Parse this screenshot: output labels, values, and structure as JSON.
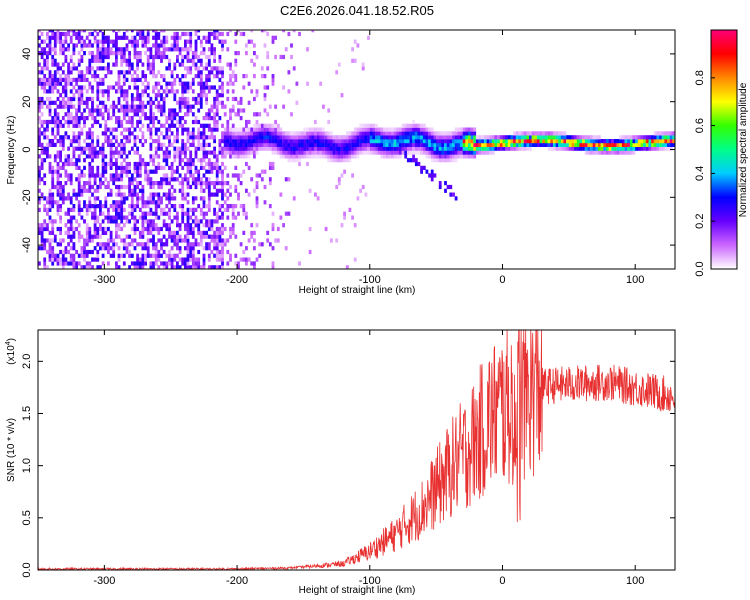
{
  "title": "C2E6.2026.041.18.52.R05",
  "chart_data": [
    {
      "type": "heatmap",
      "name": "spectrogram",
      "xlabel": "Height of straight line (km)",
      "ylabel": "Frequency (Hz)",
      "xlim": [
        -350,
        130
      ],
      "ylim": [
        -50,
        50
      ],
      "xticks": [
        -300,
        -200,
        -100,
        0,
        100
      ],
      "yticks": [
        -40,
        -20,
        0,
        20,
        40
      ],
      "colorbar": {
        "label": "Normalized spectral amplitude",
        "range": [
          0,
          1
        ],
        "ticks": [
          "0.0",
          "0.2",
          "0.4",
          "0.6",
          "0.8"
        ],
        "tick_values": [
          0.0,
          0.2,
          0.4,
          0.6,
          0.8
        ],
        "colors": [
          "#ffffff",
          "#cc66ff",
          "#6600ff",
          "#0000ff",
          "#00ccff",
          "#00ff88",
          "#33ff00",
          "#ffff00",
          "#ff8800",
          "#ff0000",
          "#ff0077"
        ]
      },
      "features": {
        "noise_region_x": [
          -350,
          -150
        ],
        "signal_start_x": -210,
        "signal_center_freq": 2
      }
    },
    {
      "type": "line",
      "name": "snr",
      "xlabel": "Height of straight line (km)",
      "ylabel": "SNR (10 * v/v)",
      "scale_label": "(x10",
      "scale_exp": "4",
      "scale_close": ")",
      "xlim": [
        -350,
        130
      ],
      "ylim": [
        0,
        2.3
      ],
      "xticks": [
        -300,
        -200,
        -100,
        0,
        100
      ],
      "yticks": [
        "0.0",
        "0.5",
        "1.0",
        "1.5",
        "2.0"
      ],
      "ytick_values": [
        0.0,
        0.5,
        1.0,
        1.5,
        2.0
      ],
      "color": "#e83030",
      "envelope": {
        "x": [
          -350,
          -200,
          -160,
          -120,
          -100,
          -80,
          -60,
          -40,
          -20,
          -10,
          0,
          10,
          20,
          30,
          50,
          80,
          110,
          130
        ],
        "y": [
          0.01,
          0.01,
          0.02,
          0.06,
          0.18,
          0.35,
          0.6,
          0.95,
          1.25,
          1.45,
          1.55,
          1.6,
          1.72,
          1.76,
          1.78,
          1.8,
          1.72,
          1.66
        ]
      }
    }
  ]
}
